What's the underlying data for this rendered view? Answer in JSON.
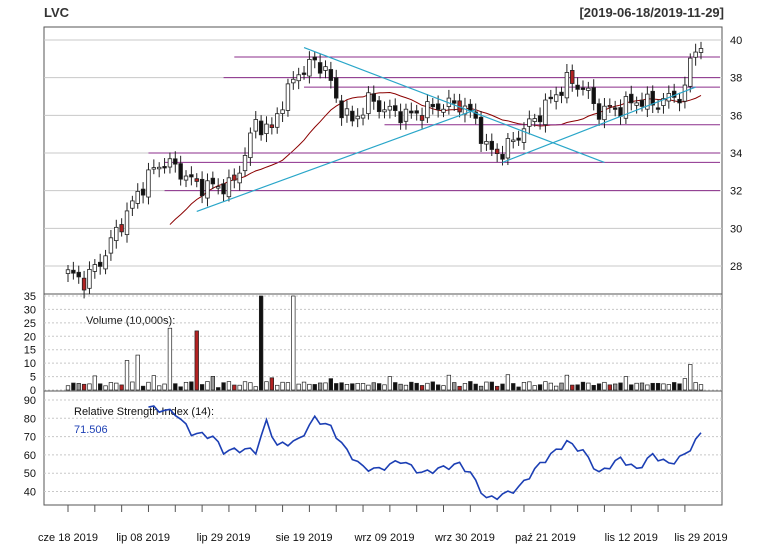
{
  "header": {
    "ticker": "LVC",
    "date_range": "[2019-06-18/2019-11-29]"
  },
  "chart_data": [
    {
      "type": "candlestick",
      "panel": "price",
      "ylim": [
        26.5,
        40.5
      ],
      "yticks": [
        28,
        30,
        32,
        34,
        36,
        38,
        40
      ],
      "grid": true,
      "horizontal_levels": [
        39.1,
        38.0,
        37.5,
        35.5,
        34.0,
        33.5,
        32.0
      ],
      "trendlines": [
        {
          "from": [
            "2019-07-22",
            30.9
          ],
          "to": [
            "2019-10-02",
            36.3
          ]
        },
        {
          "from": [
            "2019-10-09",
            33.5
          ],
          "to": [
            "2019-11-28",
            37.5
          ]
        },
        {
          "from": [
            "2019-08-19",
            39.6
          ],
          "to": [
            "2019-11-05",
            33.5
          ]
        }
      ]
    },
    {
      "type": "bar",
      "panel": "volume",
      "title": "Volume (10,000s):",
      "ylim": [
        0,
        35
      ],
      "yticks": [
        0,
        5,
        10,
        15,
        20,
        25,
        30,
        35
      ]
    },
    {
      "type": "line",
      "panel": "rsi",
      "title": "Relative Strength Index (14):",
      "last_value": "71.506",
      "ylim": [
        32,
        92
      ],
      "yticks": [
        40,
        50,
        60,
        70,
        80,
        90
      ]
    }
  ],
  "x_axis": {
    "labels": [
      "cze 18 2019",
      "lip 08 2019",
      "lip 29 2019",
      "sie 19 2019",
      "wrz 09 2019",
      "wrz 30 2019",
      "paź 21 2019",
      "lis 12 2019",
      "lis 29 2019"
    ]
  },
  "colors": {
    "up": "#ffffff",
    "down": "#111111",
    "down_red": "#b22222",
    "ma": "#8b0000",
    "trend": "#29a6c9",
    "level": "#8b2e8b",
    "rsi": "#1c3fb4",
    "grid": "#c8c8c8"
  }
}
